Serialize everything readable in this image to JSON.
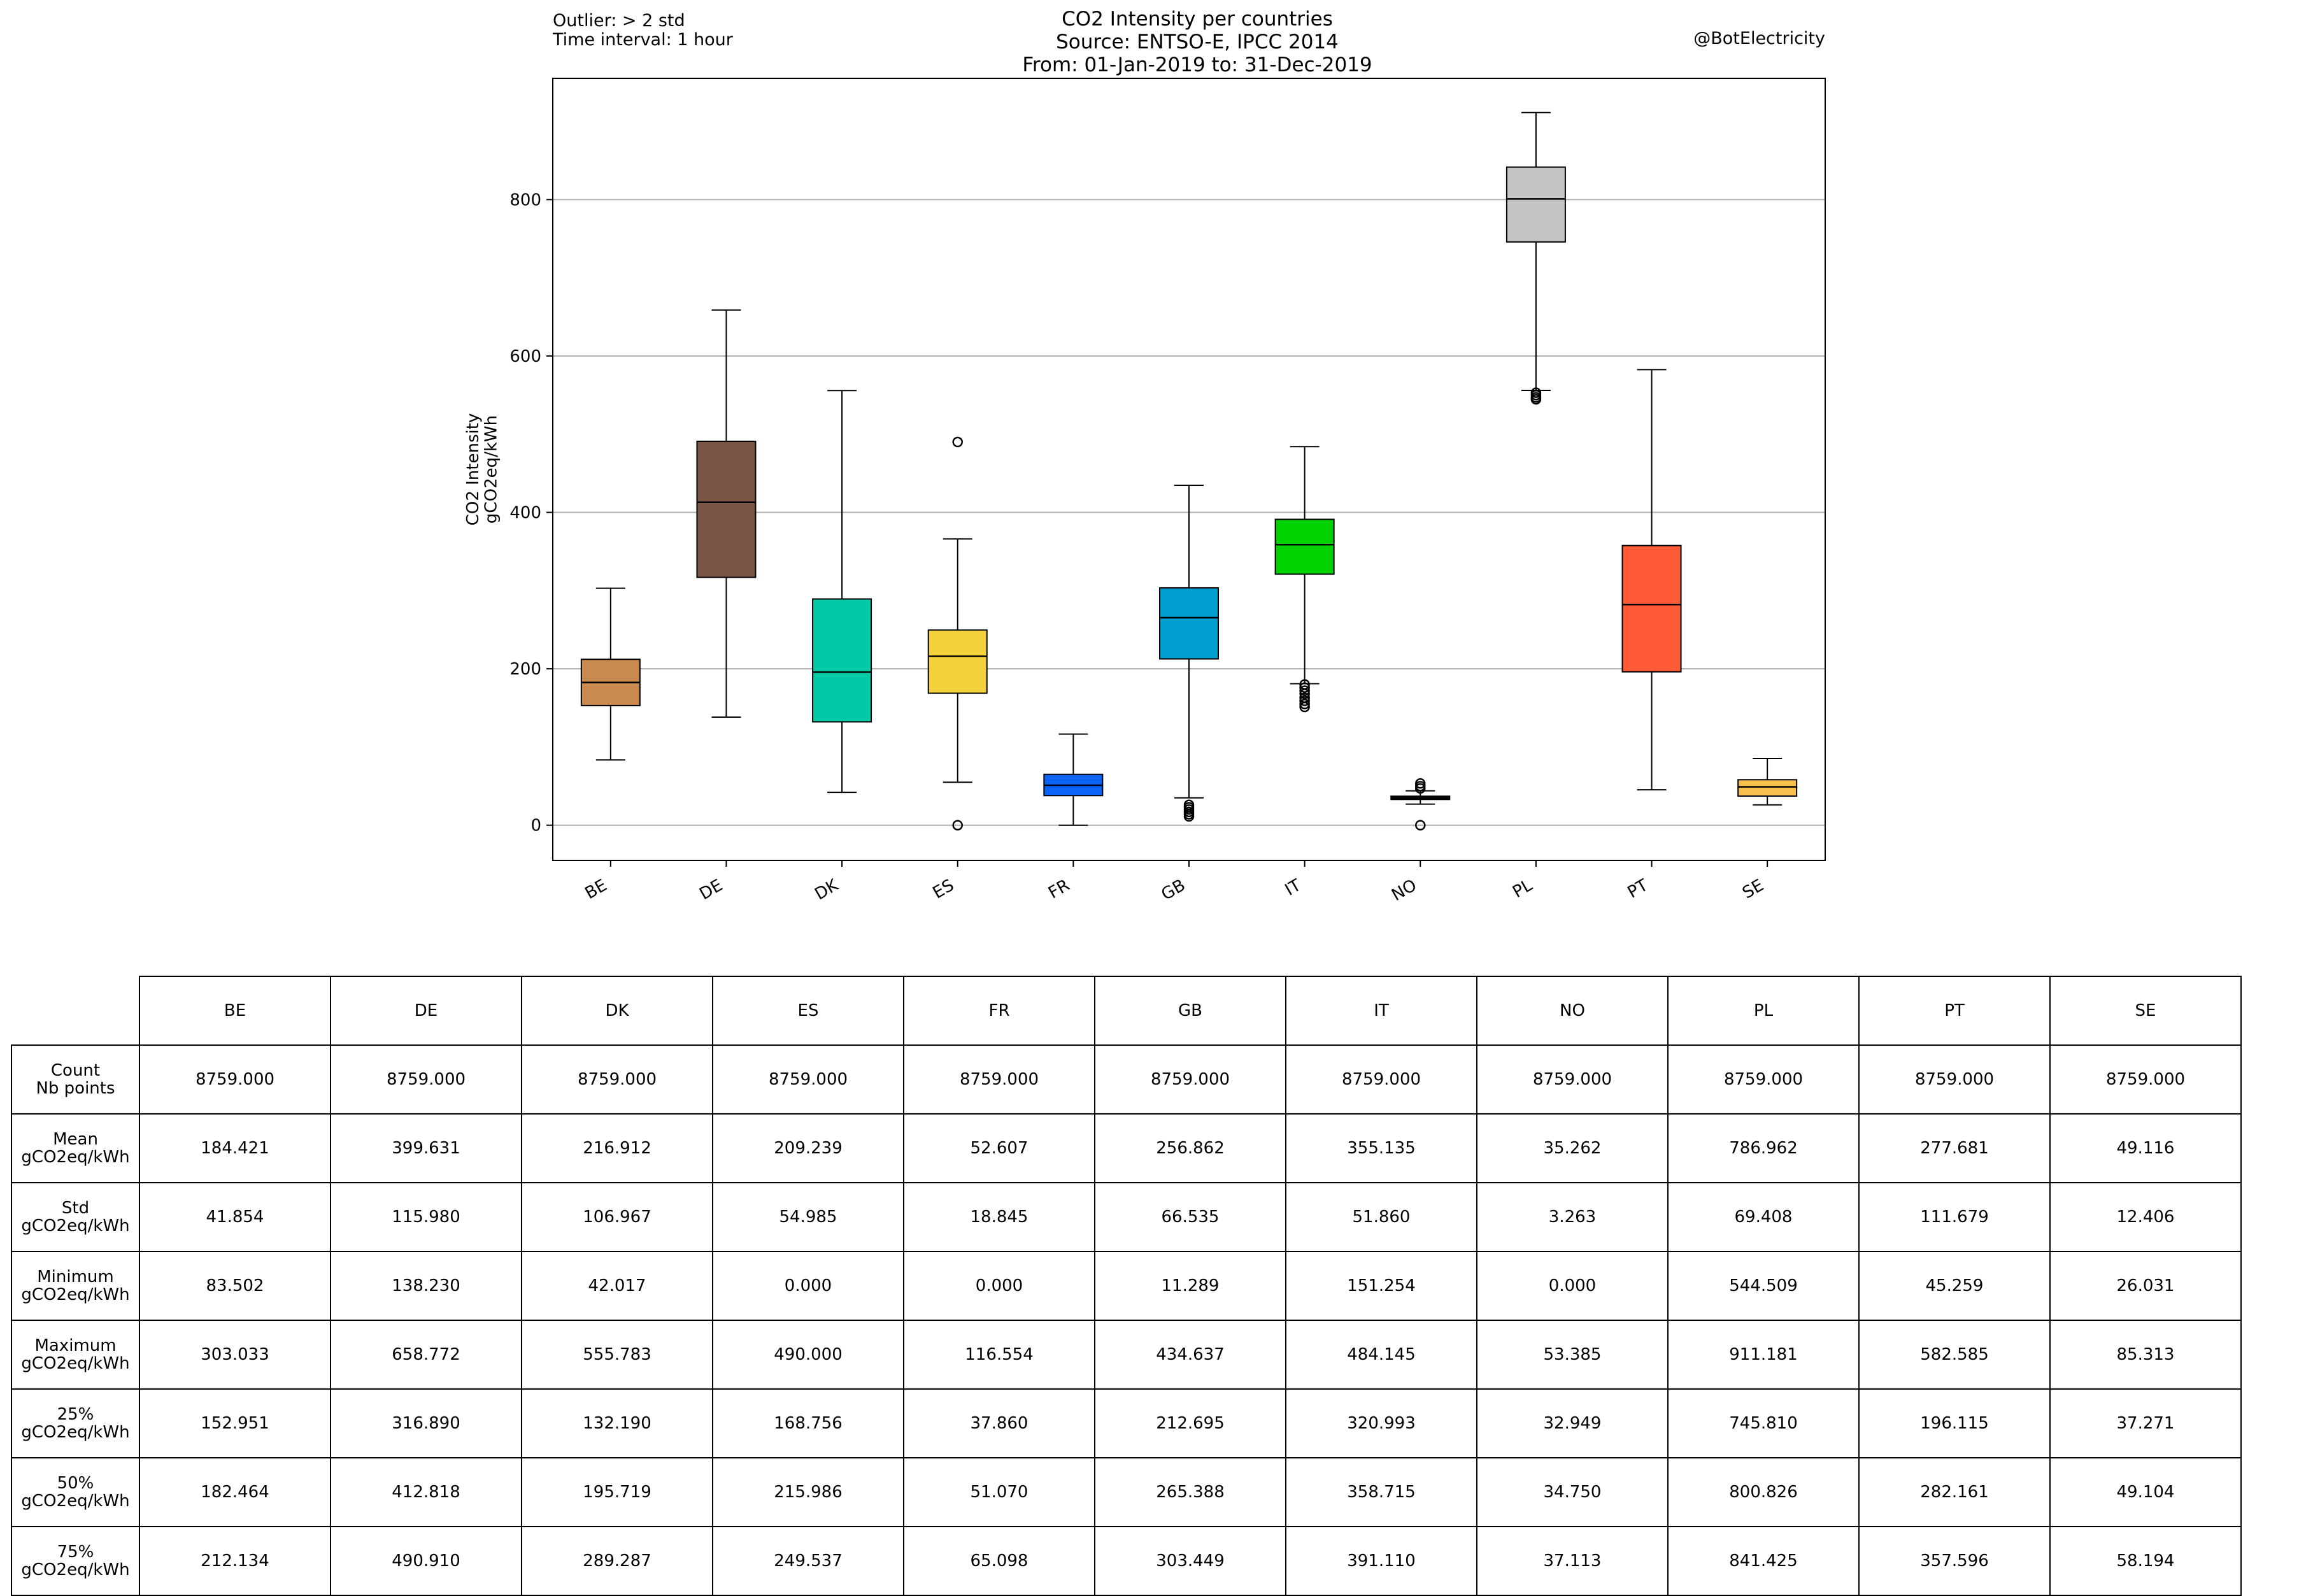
{
  "header": {
    "outlier_note": "Outlier: > 2 std",
    "interval_note": "Time interval: 1 hour",
    "title_line1": "CO2 Intensity per countries",
    "title_line2": "Source: ENTSO-E, IPCC 2014",
    "title_line3": "From: 01-Jan-2019 to: 31-Dec-2019",
    "credit": "@BotElectricity"
  },
  "chart_data": {
    "type": "box",
    "title": "CO2 Intensity per countries",
    "ylabel": "CO2 Intensity\ngCO2eq/kWh",
    "ylabel_line1": "CO2 Intensity",
    "ylabel_line2": "gCO2eq/kWh",
    "ylim": [
      -45,
      955
    ],
    "yticks": [
      0,
      200,
      400,
      600,
      800
    ],
    "grid": "horizontal",
    "categories": [
      "BE",
      "DE",
      "DK",
      "ES",
      "FR",
      "GB",
      "IT",
      "NO",
      "PL",
      "PT",
      "SE"
    ],
    "boxes": [
      {
        "name": "BE",
        "color": "#c98a50",
        "q1": 152.951,
        "median": 182.464,
        "q3": 212.134,
        "whisker_low": 83.502,
        "whisker_high": 303.033,
        "outliers": []
      },
      {
        "name": "DE",
        "color": "#7a5444",
        "q1": 316.89,
        "median": 412.818,
        "q3": 490.91,
        "whisker_low": 138.23,
        "whisker_high": 658.772,
        "outliers": []
      },
      {
        "name": "DK",
        "color": "#00cba6",
        "q1": 132.19,
        "median": 195.719,
        "q3": 289.287,
        "whisker_low": 42.017,
        "whisker_high": 555.783,
        "outliers": []
      },
      {
        "name": "ES",
        "color": "#f4d23e",
        "q1": 168.756,
        "median": 215.986,
        "q3": 249.537,
        "whisker_low": 55.0,
        "whisker_high": 366.0,
        "outliers": [
          0,
          490
        ]
      },
      {
        "name": "FR",
        "color": "#0b63f7",
        "q1": 37.86,
        "median": 51.07,
        "q3": 65.098,
        "whisker_low": 0.0,
        "whisker_high": 116.554,
        "outliers": []
      },
      {
        "name": "GB",
        "color": "#009dd1",
        "q1": 212.695,
        "median": 265.388,
        "q3": 303.449,
        "whisker_low": 35.0,
        "whisker_high": 434.637,
        "outliers": [
          11.289,
          14,
          17,
          20,
          23,
          26
        ]
      },
      {
        "name": "IT",
        "color": "#00d200",
        "q1": 320.993,
        "median": 358.715,
        "q3": 391.11,
        "whisker_low": 181.0,
        "whisker_high": 484.145,
        "outliers": [
          151.254,
          155,
          159,
          163,
          168,
          172,
          176,
          180
        ]
      },
      {
        "name": "NO",
        "color": "#1c1c1c",
        "q1": 32.949,
        "median": 34.75,
        "q3": 37.113,
        "whisker_low": 27.0,
        "whisker_high": 44.0,
        "outliers": [
          0,
          47,
          50,
          53.385
        ]
      },
      {
        "name": "PL",
        "color": "#c4c4c4",
        "q1": 745.81,
        "median": 800.826,
        "q3": 841.425,
        "whisker_low": 556.0,
        "whisker_high": 911.181,
        "outliers": [
          544.509,
          547,
          550,
          553
        ]
      },
      {
        "name": "PT",
        "color": "#ff5a36",
        "q1": 196.115,
        "median": 282.161,
        "q3": 357.596,
        "whisker_low": 45.259,
        "whisker_high": 582.585,
        "outliers": []
      },
      {
        "name": "SE",
        "color": "#f7bf4b",
        "q1": 37.271,
        "median": 49.104,
        "q3": 58.194,
        "whisker_low": 26.031,
        "whisker_high": 85.313,
        "outliers": []
      }
    ]
  },
  "table": {
    "columns": [
      "BE",
      "DE",
      "DK",
      "ES",
      "FR",
      "GB",
      "IT",
      "NO",
      "PL",
      "PT",
      "SE"
    ],
    "rows": [
      {
        "label1": "Count",
        "label2": "Nb points",
        "values": [
          "8759.000",
          "8759.000",
          "8759.000",
          "8759.000",
          "8759.000",
          "8759.000",
          "8759.000",
          "8759.000",
          "8759.000",
          "8759.000",
          "8759.000"
        ]
      },
      {
        "label1": "Mean",
        "label2": "gCO2eq/kWh",
        "values": [
          "184.421",
          "399.631",
          "216.912",
          "209.239",
          "52.607",
          "256.862",
          "355.135",
          "35.262",
          "786.962",
          "277.681",
          "49.116"
        ]
      },
      {
        "label1": "Std",
        "label2": "gCO2eq/kWh",
        "values": [
          "41.854",
          "115.980",
          "106.967",
          "54.985",
          "18.845",
          "66.535",
          "51.860",
          "3.263",
          "69.408",
          "111.679",
          "12.406"
        ]
      },
      {
        "label1": "Minimum",
        "label2": "gCO2eq/kWh",
        "values": [
          "83.502",
          "138.230",
          "42.017",
          "0.000",
          "0.000",
          "11.289",
          "151.254",
          "0.000",
          "544.509",
          "45.259",
          "26.031"
        ]
      },
      {
        "label1": "Maximum",
        "label2": "gCO2eq/kWh",
        "values": [
          "303.033",
          "658.772",
          "555.783",
          "490.000",
          "116.554",
          "434.637",
          "484.145",
          "53.385",
          "911.181",
          "582.585",
          "85.313"
        ]
      },
      {
        "label1": "25%",
        "label2": "gCO2eq/kWh",
        "values": [
          "152.951",
          "316.890",
          "132.190",
          "168.756",
          "37.860",
          "212.695",
          "320.993",
          "32.949",
          "745.810",
          "196.115",
          "37.271"
        ]
      },
      {
        "label1": "50%",
        "label2": "gCO2eq/kWh",
        "values": [
          "182.464",
          "412.818",
          "195.719",
          "215.986",
          "51.070",
          "265.388",
          "358.715",
          "34.750",
          "800.826",
          "282.161",
          "49.104"
        ]
      },
      {
        "label1": "75%",
        "label2": "gCO2eq/kWh",
        "values": [
          "212.134",
          "490.910",
          "289.287",
          "249.537",
          "65.098",
          "303.449",
          "391.110",
          "37.113",
          "841.425",
          "357.596",
          "58.194"
        ]
      }
    ]
  }
}
